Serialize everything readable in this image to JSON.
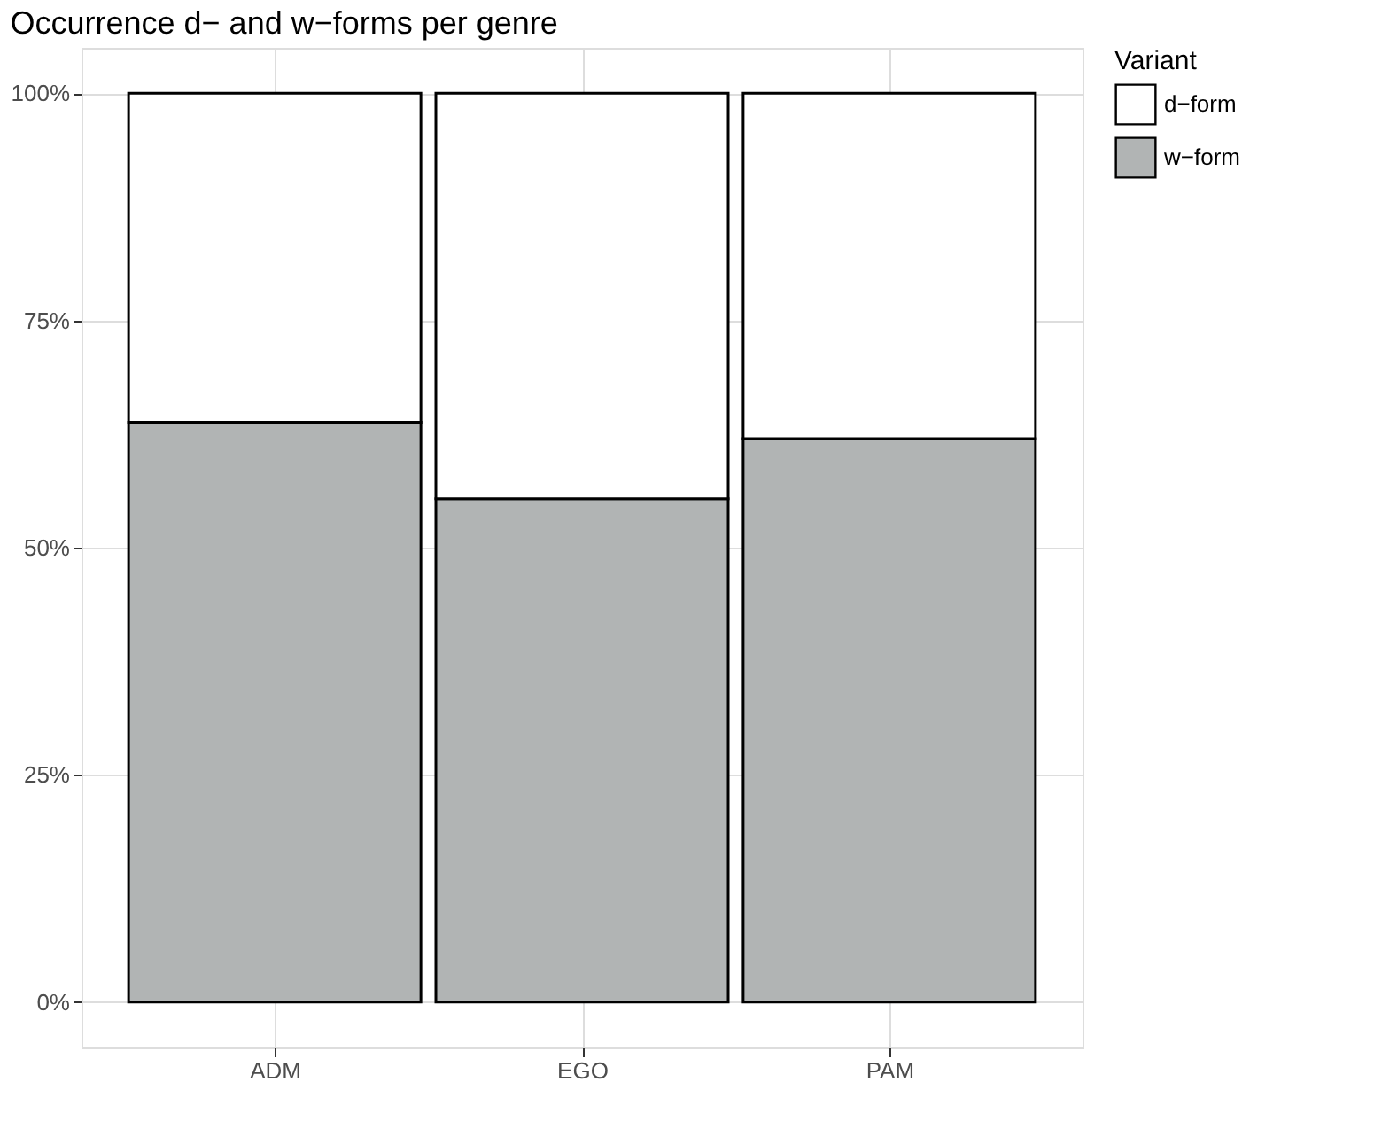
{
  "chart_data": {
    "type": "bar",
    "title": "Occurrence d− and w−forms per genre",
    "legend_title": "Variant",
    "categories": [
      "ADM",
      "EGO",
      "PAM"
    ],
    "stacked": true,
    "series": [
      {
        "name": "w−form",
        "color": "#b1b4b4",
        "values": [
          63.8,
          55.4,
          62.0
        ]
      },
      {
        "name": "d−form",
        "color": "#ffffff",
        "values": [
          36.2,
          44.6,
          38.0
        ]
      }
    ],
    "ylim": [
      -5,
      105
    ],
    "yticks": [
      {
        "value": 0,
        "label": "0%"
      },
      {
        "value": 25,
        "label": "25%"
      },
      {
        "value": 50,
        "label": "50%"
      },
      {
        "value": 75,
        "label": "75%"
      },
      {
        "value": 100,
        "label": "100%"
      }
    ],
    "grid": true,
    "legend": "right"
  }
}
